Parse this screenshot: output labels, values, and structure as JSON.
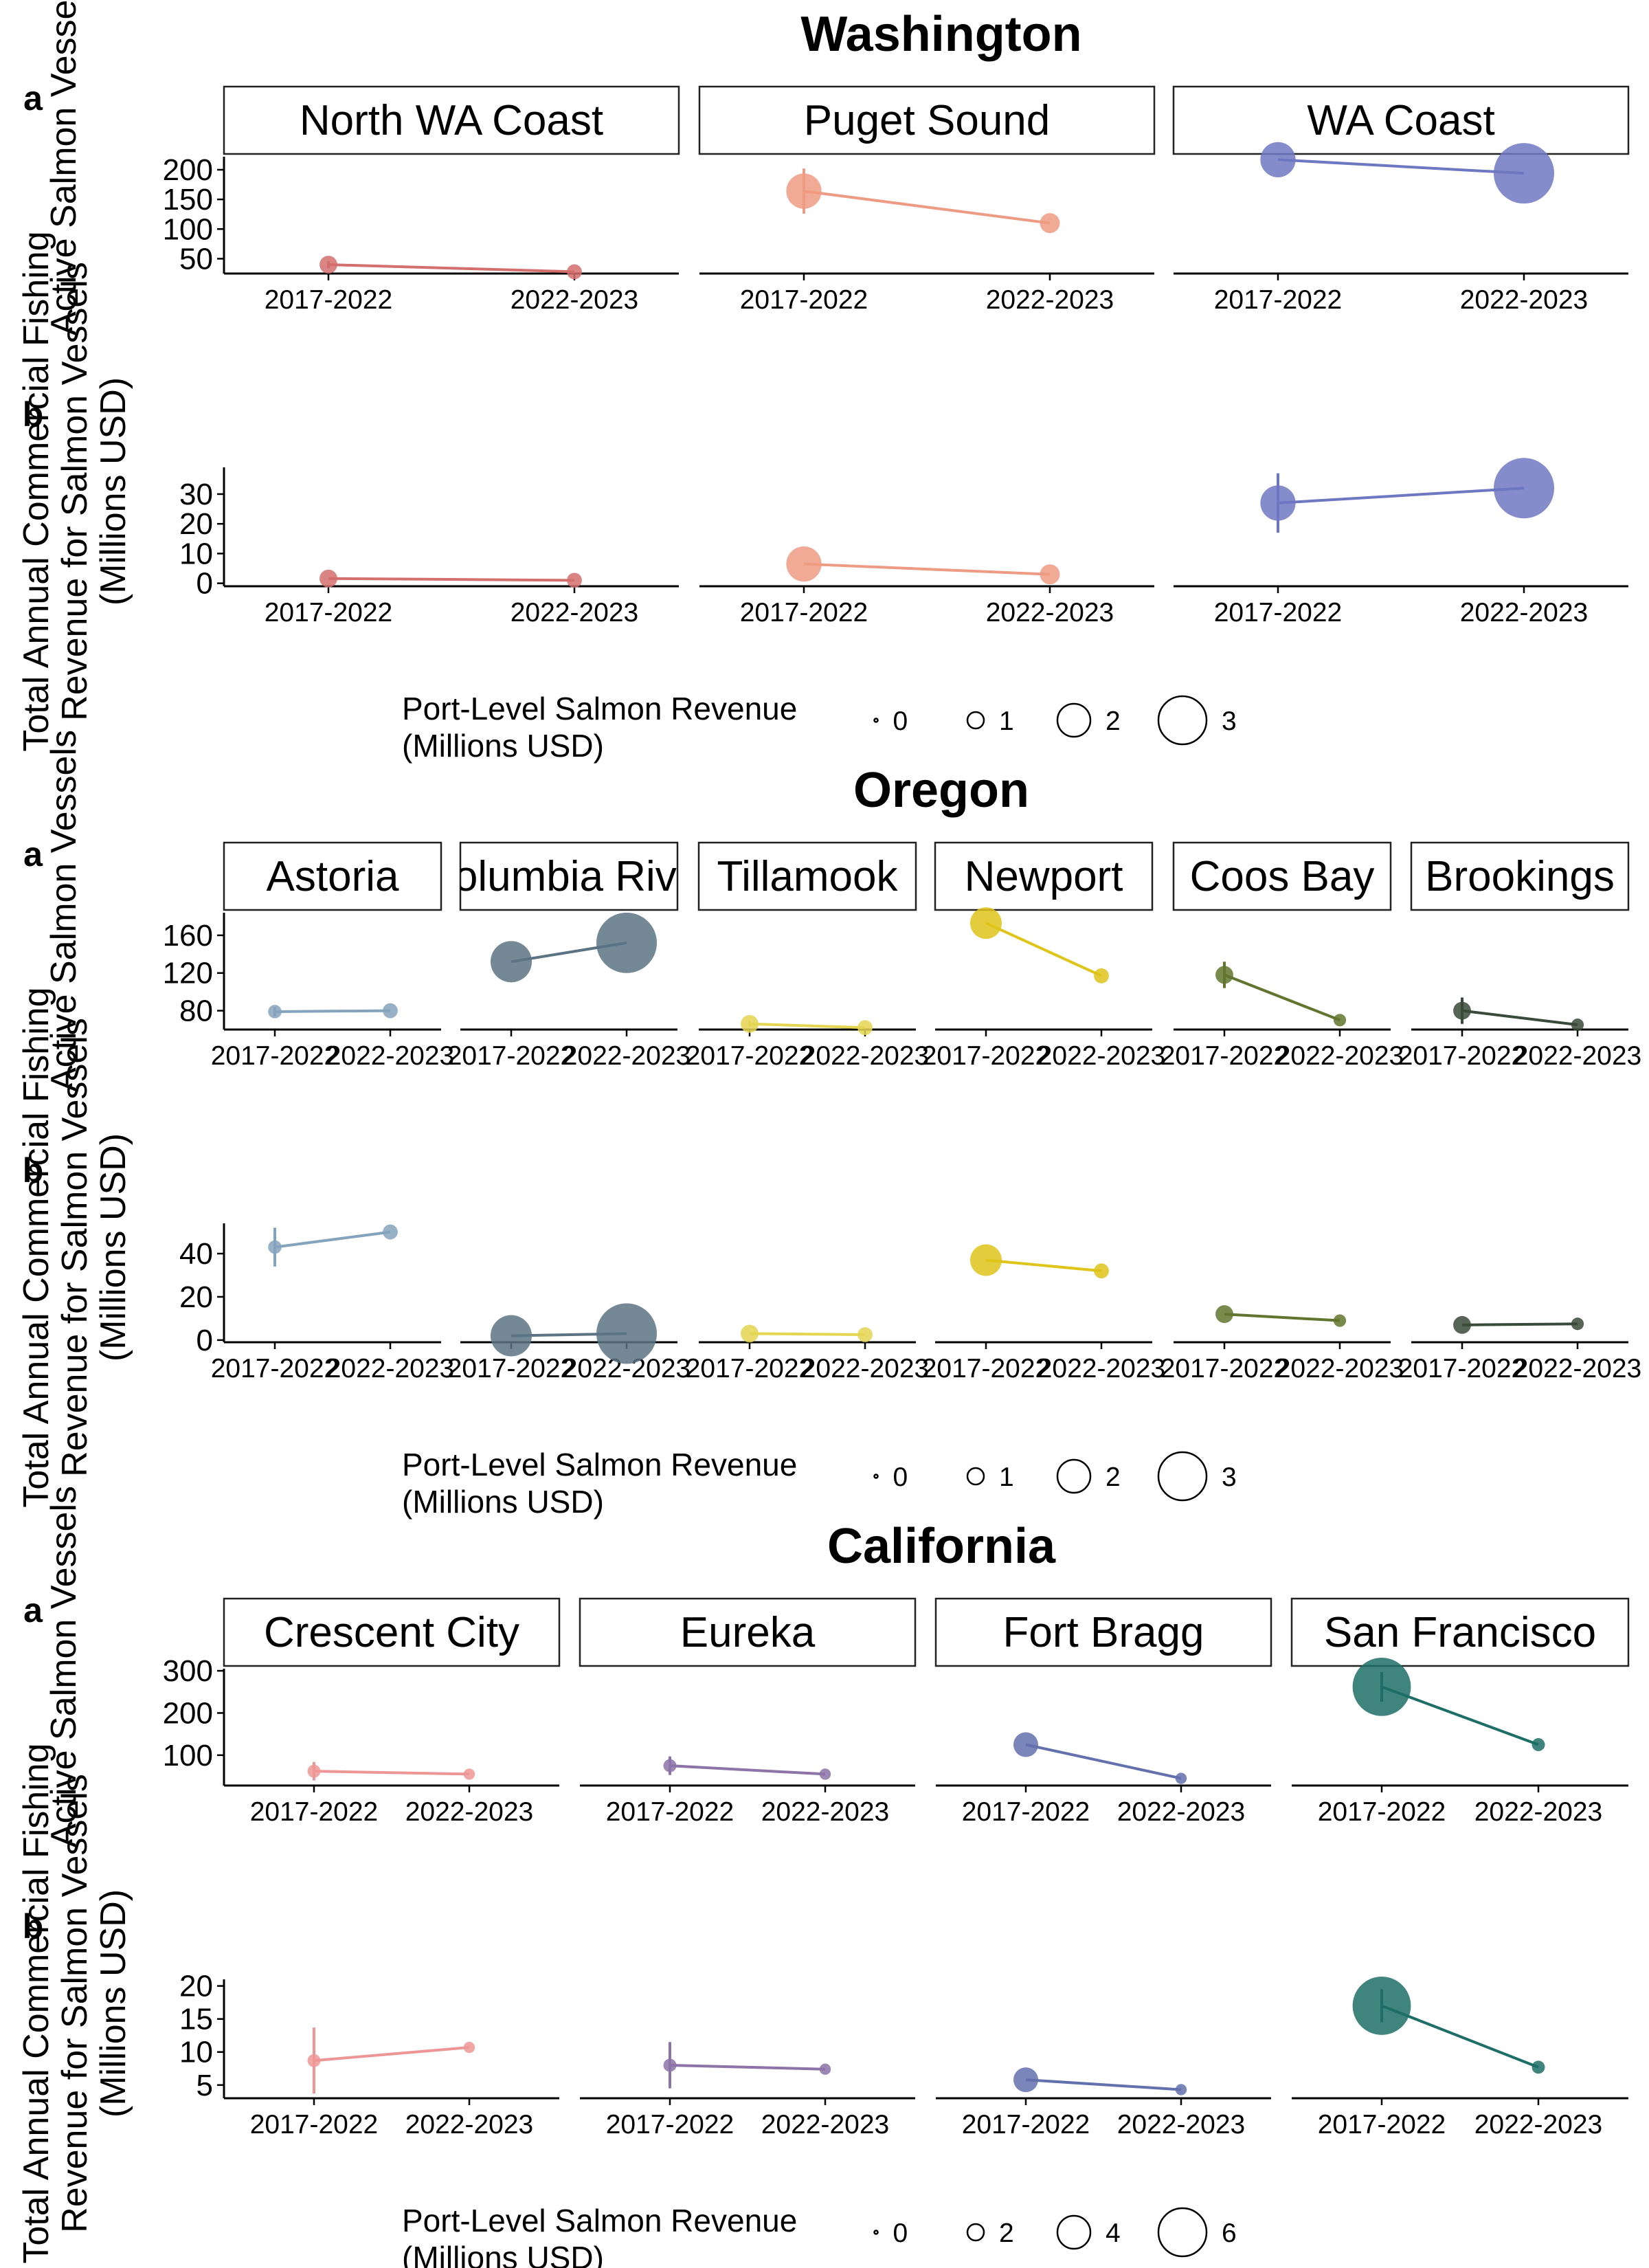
{
  "figure": {
    "regions": [
      {
        "title": "Washington",
        "ylabels": {
          "a": [
            "Active Salmon Vessels"
          ],
          "b": [
            "Total Annual Commercial Fishing",
            "Revenue for Salmon Vessels",
            "(Millions USD)"
          ]
        },
        "legend": {
          "title": [
            "Port-Level Salmon Revenue",
            "(Millions USD)"
          ],
          "labels": [
            "0",
            "1",
            "2",
            "3"
          ]
        },
        "panels": [
          {
            "name": "North WA Coast",
            "color": "#D36F6F"
          },
          {
            "name": "Puget Sound",
            "color": "#EE9B83"
          },
          {
            "name": "WA Coast",
            "color": "#6E78C2"
          }
        ]
      },
      {
        "title": "Oregon",
        "ylabels": {
          "a": [
            "Active Salmon Vessels"
          ],
          "b": [
            "Total Annual Commercial Fishing",
            "Revenue for Salmon Vessels",
            "(Millions USD)"
          ]
        },
        "legend": {
          "title": [
            "Port-Level Salmon Revenue",
            "(Millions USD)"
          ],
          "labels": [
            "0",
            "1",
            "2",
            "3"
          ]
        },
        "panels": [
          {
            "name": "Astoria",
            "color": "#86A3BD"
          },
          {
            "name": "Columbia River",
            "color": "#5C7384"
          },
          {
            "name": "Tillamook",
            "color": "#E4D552"
          },
          {
            "name": "Newport",
            "color": "#DFC41A"
          },
          {
            "name": "Coos Bay",
            "color": "#61752E"
          },
          {
            "name": "Brookings",
            "color": "#3A4A3A"
          }
        ]
      },
      {
        "title": "California",
        "ylabels": {
          "a": [
            "Active Salmon Vessels"
          ],
          "b": [
            "Total Annual Commercial Fishing",
            "Revenue for Salmon Vessels",
            "(Millions USD)"
          ]
        },
        "legend": {
          "title": [
            "Port-Level Salmon Revenue",
            "(Millions USD)"
          ],
          "labels": [
            "0",
            "2",
            "4",
            "6"
          ]
        },
        "panels": [
          {
            "name": "Crescent City",
            "color": "#EE9696"
          },
          {
            "name": "Eureka",
            "color": "#8C73A8"
          },
          {
            "name": "Fort Bragg",
            "color": "#6370AE"
          },
          {
            "name": "San Francisco",
            "color": "#1D6E66"
          }
        ]
      }
    ]
  },
  "chart_data": [
    {
      "type": "line",
      "title": "Washington",
      "subplots": [
        {
          "label": "a",
          "ylim": [
            25,
            222
          ],
          "yticks": [
            50,
            100,
            150,
            200
          ],
          "categories": [
            "2017-2022",
            "2022-2023"
          ],
          "series": [
            {
              "name": "North WA Coast",
              "y": [
                40,
                28
              ],
              "err": [
                6,
                0
              ],
              "revenue": [
                0.1,
                0.05
              ]
            },
            {
              "name": "Puget Sound",
              "y": [
                164,
                110
              ],
              "err": [
                38,
                0
              ],
              "revenue": [
                0.8,
                0.15
              ]
            },
            {
              "name": "WA Coast",
              "y": [
                217,
                194
              ],
              "err": [
                0,
                0
              ],
              "revenue": [
                0.8,
                3.0
              ]
            }
          ]
        },
        {
          "label": "b",
          "ylim": [
            -1,
            39
          ],
          "yticks": [
            0,
            10,
            20,
            30
          ],
          "categories": [
            "2017-2022",
            "2022-2023"
          ],
          "series": [
            {
              "name": "North WA Coast",
              "y": [
                1.6,
                1.0
              ],
              "err": [
                0,
                0
              ],
              "revenue": [
                0.1,
                0.05
              ]
            },
            {
              "name": "Puget Sound",
              "y": [
                6.5,
                3.0
              ],
              "err": [
                0,
                0
              ],
              "revenue": [
                0.8,
                0.15
              ]
            },
            {
              "name": "WA Coast",
              "y": [
                27,
                32
              ],
              "err": [
                10,
                0
              ],
              "revenue": [
                0.8,
                3.0
              ]
            }
          ]
        }
      ],
      "legend": {
        "title": "Port-Level Salmon Revenue (Millions USD)",
        "values": [
          0,
          1,
          2,
          3
        ]
      }
    },
    {
      "type": "line",
      "title": "Oregon",
      "subplots": [
        {
          "label": "a",
          "ylim": [
            60,
            184
          ],
          "yticks": [
            80,
            120,
            160
          ],
          "categories": [
            "2017-2022",
            "2022-2023"
          ],
          "series": [
            {
              "name": "Astoria",
              "y": [
                79,
                80
              ],
              "err": [
                5,
                0
              ],
              "revenue": [
                0.03,
                0.05
              ]
            },
            {
              "name": "Columbia River",
              "y": [
                132,
                152
              ],
              "err": [
                0,
                0
              ],
              "revenue": [
                1.2,
                3.0
              ]
            },
            {
              "name": "Tillamook",
              "y": [
                66,
                62
              ],
              "err": [
                3,
                0
              ],
              "revenue": [
                0.1,
                0.05
              ]
            },
            {
              "name": "Newport",
              "y": [
                173,
                117
              ],
              "err": [
                0,
                0
              ],
              "revenue": [
                0.6,
                0.05
              ]
            },
            {
              "name": "Coos Bay",
              "y": [
                118,
                70
              ],
              "err": [
                14,
                0
              ],
              "revenue": [
                0.1,
                0.02
              ]
            },
            {
              "name": "Brookings",
              "y": [
                80,
                65
              ],
              "err": [
                14,
                0
              ],
              "revenue": [
                0.1,
                0.02
              ]
            }
          ]
        },
        {
          "label": "b",
          "ylim": [
            -1,
            54
          ],
          "yticks": [
            0,
            20,
            40
          ],
          "categories": [
            "2017-2022",
            "2022-2023"
          ],
          "series": [
            {
              "name": "Astoria",
              "y": [
                43,
                50
              ],
              "err": [
                9,
                0
              ],
              "revenue": [
                0.03,
                0.05
              ]
            },
            {
              "name": "Columbia River",
              "y": [
                2,
                3
              ],
              "err": [
                0,
                0
              ],
              "revenue": [
                1.2,
                3.0
              ]
            },
            {
              "name": "Tillamook",
              "y": [
                3,
                2.5
              ],
              "err": [
                0,
                0
              ],
              "revenue": [
                0.1,
                0.05
              ]
            },
            {
              "name": "Newport",
              "y": [
                37,
                32
              ],
              "err": [
                0,
                0
              ],
              "revenue": [
                0.6,
                0.05
              ]
            },
            {
              "name": "Coos Bay",
              "y": [
                12,
                9
              ],
              "err": [
                0,
                0
              ],
              "revenue": [
                0.1,
                0.02
              ]
            },
            {
              "name": "Brookings",
              "y": [
                7,
                7.5
              ],
              "err": [
                0,
                0
              ],
              "revenue": [
                0.1,
                0.02
              ]
            }
          ]
        }
      ],
      "legend": {
        "title": "Port-Level Salmon Revenue (Millions USD)",
        "values": [
          0,
          1,
          2,
          3
        ]
      }
    },
    {
      "type": "line",
      "title": "California",
      "subplots": [
        {
          "label": "a",
          "ylim": [
            28,
            305
          ],
          "yticks": [
            100,
            200,
            300
          ],
          "categories": [
            "2017-2022",
            "2022-2023"
          ],
          "series": [
            {
              "name": "Crescent City",
              "y": [
                62,
                55
              ],
              "err": [
                22,
                0
              ],
              "revenue": [
                0.05,
                0.02
              ]
            },
            {
              "name": "Eureka",
              "y": [
                75,
                55
              ],
              "err": [
                22,
                0
              ],
              "revenue": [
                0.05,
                0.02
              ]
            },
            {
              "name": "Fort Bragg",
              "y": [
                125,
                45
              ],
              "err": [
                0,
                0
              ],
              "revenue": [
                0.6,
                0.02
              ]
            },
            {
              "name": "San Francisco",
              "y": [
                262,
                125
              ],
              "err": [
                35,
                0
              ],
              "revenue": [
                5.5,
                0.05
              ]
            }
          ]
        },
        {
          "label": "b",
          "ylim": [
            3,
            21
          ],
          "yticks": [
            5,
            10,
            15,
            20
          ],
          "categories": [
            "2017-2022",
            "2022-2023"
          ],
          "series": [
            {
              "name": "Crescent City",
              "y": [
                8.7,
                10.7
              ],
              "err": [
                5,
                0
              ],
              "revenue": [
                0.05,
                0.02
              ]
            },
            {
              "name": "Eureka",
              "y": [
                8.0,
                7.4
              ],
              "err": [
                3.5,
                0
              ],
              "revenue": [
                0.05,
                0.02
              ]
            },
            {
              "name": "Fort Bragg",
              "y": [
                5.8,
                4.3
              ],
              "err": [
                0,
                0
              ],
              "revenue": [
                0.6,
                0.02
              ]
            },
            {
              "name": "San Francisco",
              "y": [
                17,
                7.7
              ],
              "err": [
                2.5,
                0
              ],
              "revenue": [
                5.5,
                0.05
              ]
            }
          ]
        }
      ],
      "legend": {
        "title": "Port-Level Salmon Revenue (Millions USD)",
        "values": [
          0,
          2,
          4,
          6
        ]
      }
    }
  ]
}
